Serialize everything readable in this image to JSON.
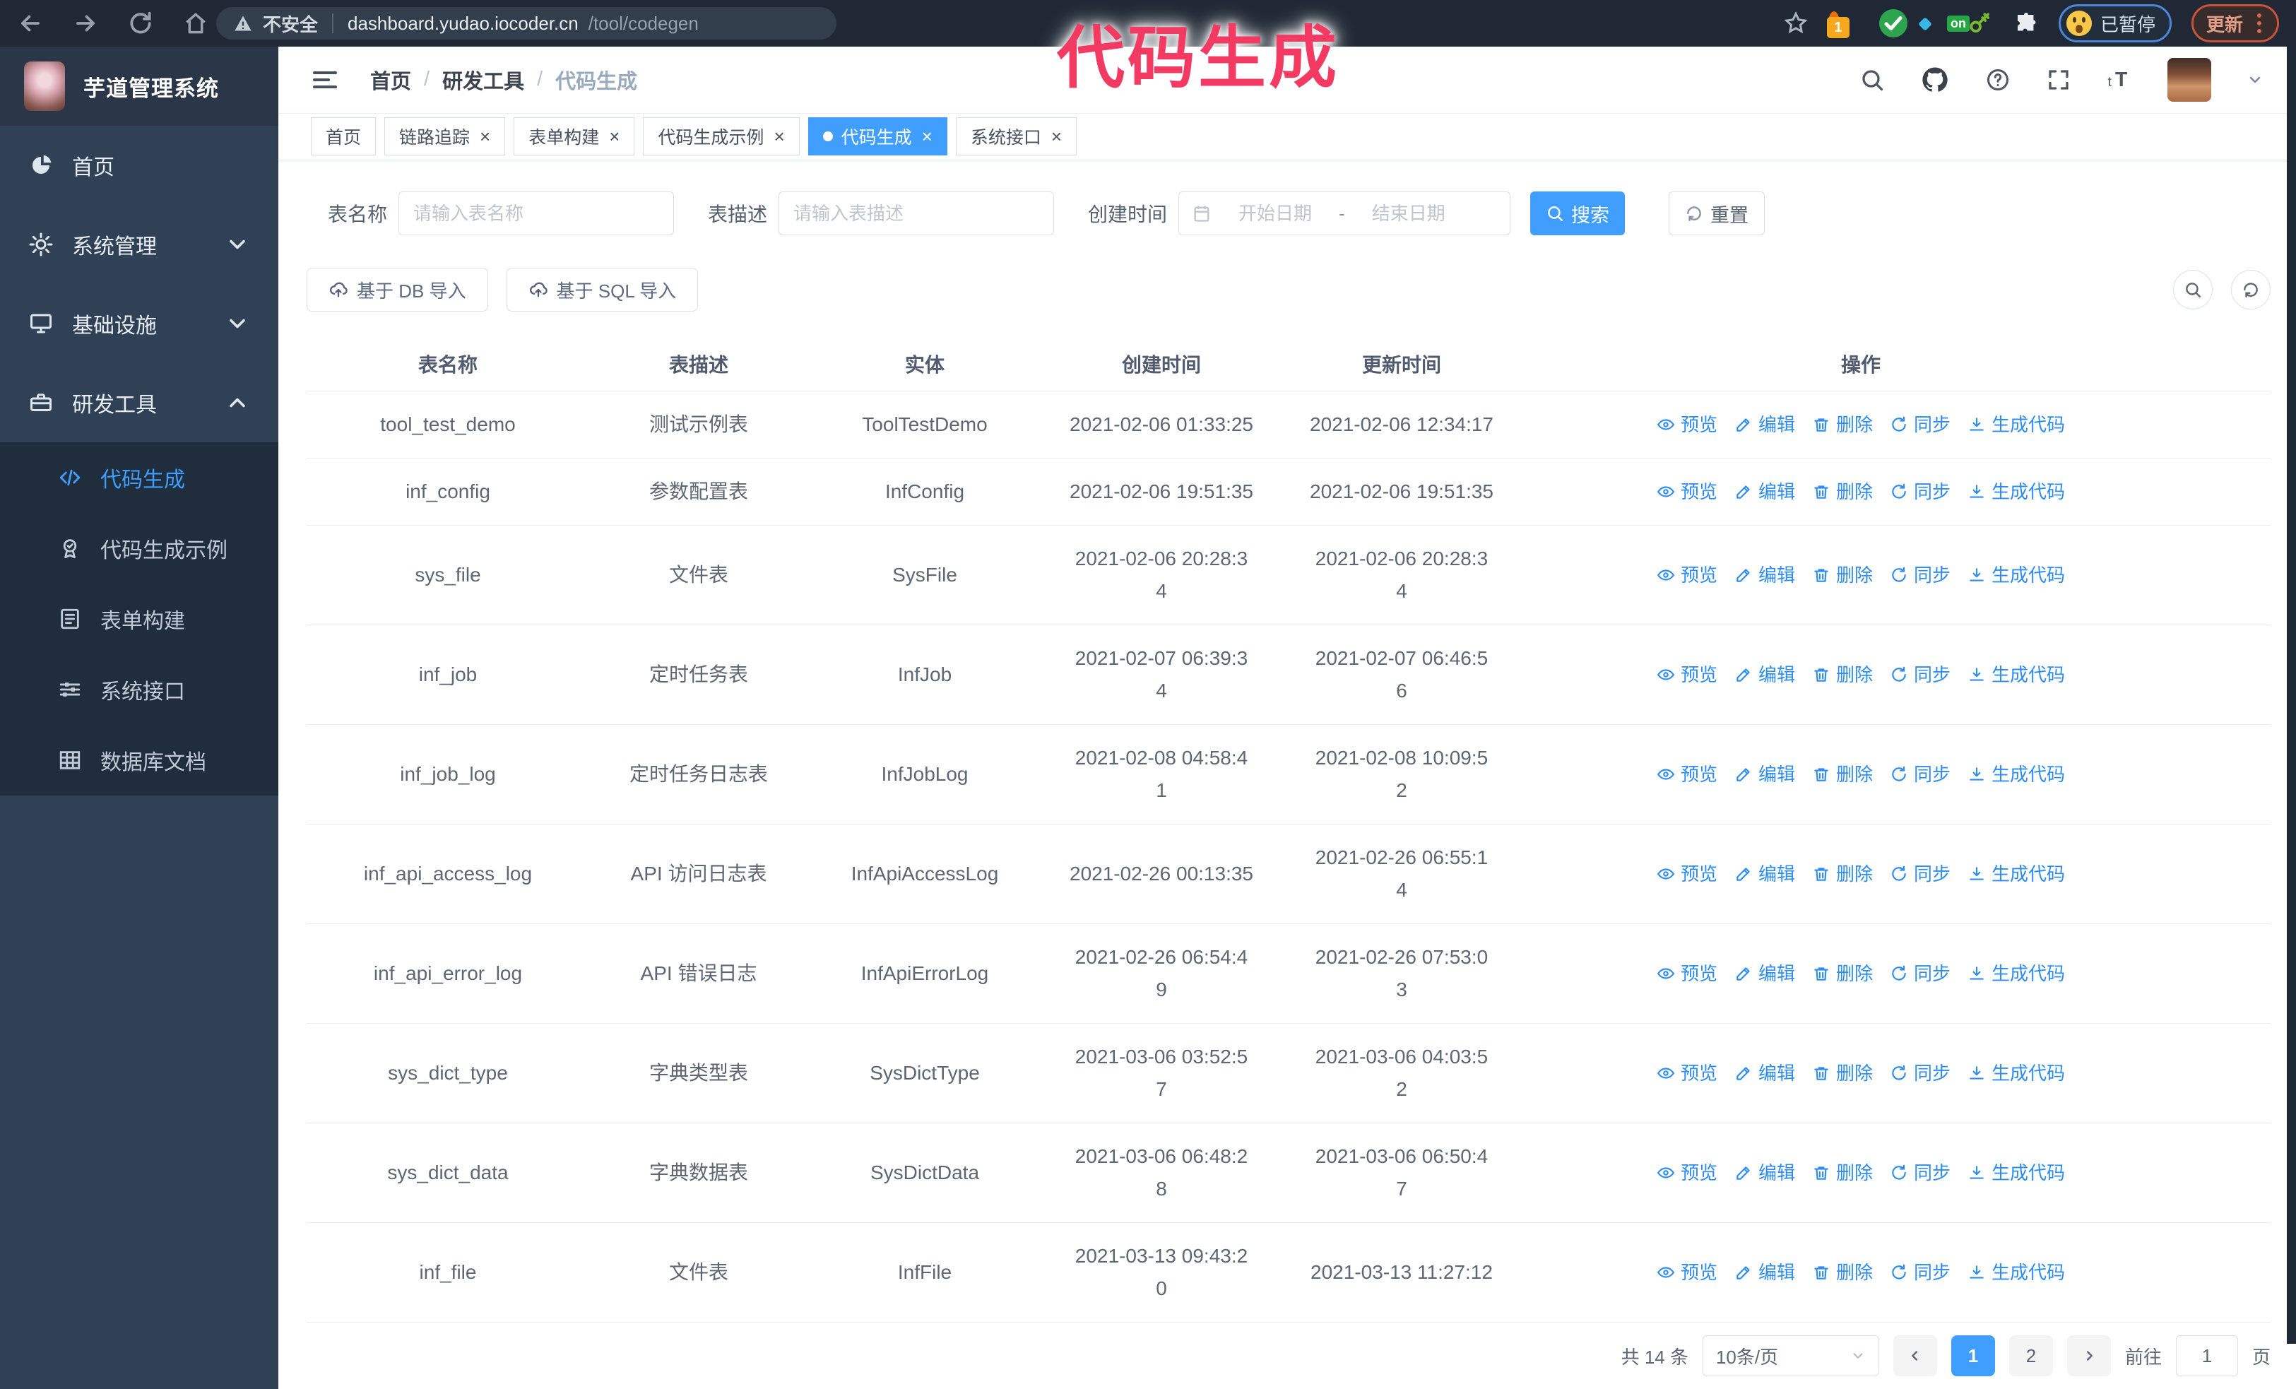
{
  "annotation": {
    "text": "代码生成"
  },
  "colors": {
    "accent": "#409eff",
    "action_link": "#2d8cf0",
    "annotation": "#f23a63",
    "sidebar_bg": "#304156",
    "submenu_bg": "#1f2d3d"
  },
  "browser": {
    "insecure_label": "不安全",
    "url_host": "dashboard.yudao.iocoder.cn",
    "url_path": "/tool/codegen",
    "ext_badge": "1",
    "ext_on_badge": "on",
    "paused_label": "已暂停",
    "update_label": "更新"
  },
  "sidebar": {
    "title": "芋道管理系统",
    "items": [
      {
        "id": "home",
        "label": "首页",
        "icon": "dashboard-icon"
      },
      {
        "id": "system",
        "label": "系统管理",
        "icon": "gear-icon",
        "chevron": "down"
      },
      {
        "id": "infra",
        "label": "基础设施",
        "icon": "monitor-icon",
        "chevron": "down"
      },
      {
        "id": "devtools",
        "label": "研发工具",
        "icon": "toolbox-icon",
        "chevron": "up",
        "expanded": true,
        "children": [
          {
            "id": "codegen",
            "label": "代码生成",
            "icon": "code-icon",
            "active": true
          },
          {
            "id": "codegen-example",
            "label": "代码生成示例",
            "icon": "badge-check-icon"
          },
          {
            "id": "form-build",
            "label": "表单构建",
            "icon": "form-icon"
          },
          {
            "id": "system-api",
            "label": "系统接口",
            "icon": "sliders-icon"
          },
          {
            "id": "db-doc",
            "label": "数据库文档",
            "icon": "table-grid-icon"
          }
        ]
      }
    ]
  },
  "breadcrumb": {
    "separator": "/",
    "items": [
      "首页",
      "研发工具",
      "代码生成"
    ]
  },
  "tabs": [
    {
      "label": "首页",
      "closable": false,
      "active": false
    },
    {
      "label": "链路追踪",
      "closable": true,
      "active": false
    },
    {
      "label": "表单构建",
      "closable": true,
      "active": false
    },
    {
      "label": "代码生成示例",
      "closable": true,
      "active": false
    },
    {
      "label": "代码生成",
      "closable": true,
      "active": true
    },
    {
      "label": "系统接口",
      "closable": true,
      "active": false
    }
  ],
  "filters": {
    "name_label": "表名称",
    "name_placeholder": "请输入表名称",
    "desc_label": "表描述",
    "desc_placeholder": "请输入表描述",
    "time_label": "创建时间",
    "start_placeholder": "开始日期",
    "range_separator": "-",
    "end_placeholder": "结束日期",
    "search_label": "搜索",
    "reset_label": "重置"
  },
  "toolbar": {
    "import_db": "基于 DB 导入",
    "import_sql": "基于 SQL 导入"
  },
  "table": {
    "columns": [
      "表名称",
      "表描述",
      "实体",
      "创建时间",
      "更新时间",
      "操作"
    ],
    "actions": [
      "预览",
      "编辑",
      "删除",
      "同步",
      "生成代码"
    ],
    "rows": [
      {
        "name": "tool_test_demo",
        "description": "测试示例表",
        "entity": "ToolTestDemo",
        "created": "2021-02-06 01:33:25",
        "updated": "2021-02-06 12:34:17"
      },
      {
        "name": "inf_config",
        "description": "参数配置表",
        "entity": "InfConfig",
        "created": "2021-02-06 19:51:35",
        "updated": "2021-02-06 19:51:35"
      },
      {
        "name": "sys_file",
        "description": "文件表",
        "entity": "SysFile",
        "created": "2021-02-06 20:28:3\n4",
        "updated": "2021-02-06 20:28:3\n4"
      },
      {
        "name": "inf_job",
        "description": "定时任务表",
        "entity": "InfJob",
        "created": "2021-02-07 06:39:3\n4",
        "updated": "2021-02-07 06:46:5\n6"
      },
      {
        "name": "inf_job_log",
        "description": "定时任务日志表",
        "entity": "InfJobLog",
        "created": "2021-02-08 04:58:4\n1",
        "updated": "2021-02-08 10:09:5\n2"
      },
      {
        "name": "inf_api_access_log",
        "description": "API 访问日志表",
        "entity": "InfApiAccessLog",
        "created": "2021-02-26 00:13:35",
        "updated": "2021-02-26 06:55:1\n4"
      },
      {
        "name": "inf_api_error_log",
        "description": "API 错误日志",
        "entity": "InfApiErrorLog",
        "created": "2021-02-26 06:54:4\n9",
        "updated": "2021-02-26 07:53:0\n3"
      },
      {
        "name": "sys_dict_type",
        "description": "字典类型表",
        "entity": "SysDictType",
        "created": "2021-03-06 03:52:5\n7",
        "updated": "2021-03-06 04:03:5\n2"
      },
      {
        "name": "sys_dict_data",
        "description": "字典数据表",
        "entity": "SysDictData",
        "created": "2021-03-06 06:48:2\n8",
        "updated": "2021-03-06 06:50:4\n7"
      },
      {
        "name": "inf_file",
        "description": "文件表",
        "entity": "InfFile",
        "created": "2021-03-13 09:43:2\n0",
        "updated": "2021-03-13 11:27:12"
      }
    ]
  },
  "pagination": {
    "total_label": "共 14 条",
    "page_size": "10条/页",
    "pages": [
      "1",
      "2"
    ],
    "active_page": "1",
    "goto_label": "前往",
    "goto_value": "1",
    "page_suffix": "页"
  }
}
